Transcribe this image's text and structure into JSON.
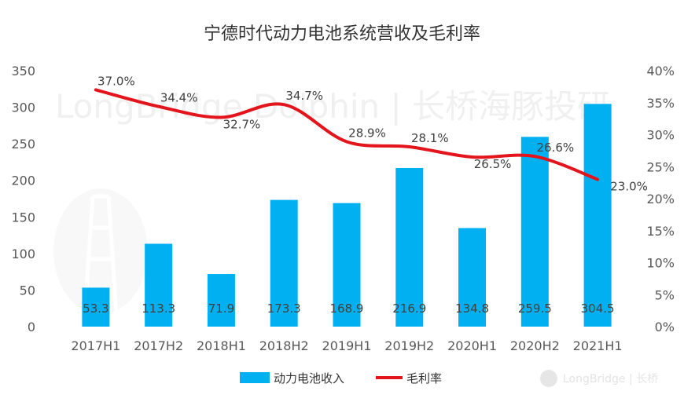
{
  "chart_data": {
    "type": "bar+line",
    "title": "宁德时代动力电池系统营收及毛利率",
    "categories": [
      "2017H1",
      "2017H2",
      "2018H1",
      "2018H2",
      "2019H1",
      "2019H2",
      "2020H1",
      "2020H2",
      "2021H1"
    ],
    "series": [
      {
        "name": "动力电池收入",
        "type": "bar",
        "axis": "left",
        "color": "#00B0F0",
        "values": [
          53.3,
          113.3,
          71.9,
          173.3,
          168.9,
          216.9,
          134.8,
          259.5,
          304.5
        ],
        "labels": [
          "53.3",
          "113.3",
          "71.9",
          "173.3",
          "168.9",
          "216.9",
          "134.8",
          "259.5",
          "304.5"
        ]
      },
      {
        "name": "毛利率",
        "type": "line",
        "axis": "right",
        "color": "#E3141B",
        "values": [
          37.0,
          34.4,
          32.7,
          34.7,
          28.9,
          28.1,
          26.5,
          26.6,
          23.0
        ],
        "labels": [
          "37.0%",
          "34.4%",
          "32.7%",
          "34.7%",
          "28.9%",
          "28.1%",
          "26.5%",
          "26.6%",
          "23.0%"
        ]
      }
    ],
    "y_left": {
      "min": 0,
      "max": 350,
      "ticks": [
        "0",
        "50",
        "100",
        "150",
        "200",
        "250",
        "300",
        "350"
      ]
    },
    "y_right": {
      "min": 0,
      "max": 40,
      "ticks": [
        "0%",
        "5%",
        "10%",
        "15%",
        "20%",
        "25%",
        "30%",
        "35%",
        "40%"
      ]
    },
    "grid": false,
    "legend_position": "bottom"
  },
  "watermark": {
    "text": "LongBridge Dolphin | 长桥海豚投研",
    "corner_text": "LongBridge | 长桥"
  }
}
